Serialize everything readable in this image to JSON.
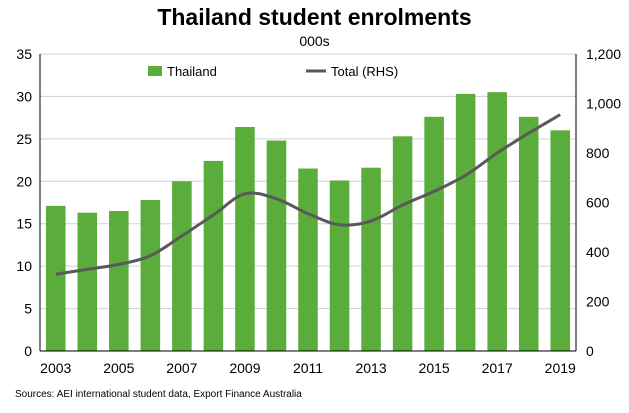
{
  "chart_data": {
    "type": "bar",
    "title": "Thailand student enrolments",
    "subtitle": "000s",
    "source": "Sources: AEI international student data, Export Finance Australia",
    "x": [
      2003,
      2004,
      2005,
      2006,
      2007,
      2008,
      2009,
      2010,
      2011,
      2012,
      2013,
      2014,
      2015,
      2016,
      2017,
      2018,
      2019
    ],
    "x_tick_labels": [
      "2003",
      "2005",
      "2007",
      "2009",
      "2011",
      "2013",
      "2015",
      "2017",
      "2019"
    ],
    "y_left_ticks": [
      "0",
      "5",
      "10",
      "15",
      "20",
      "25",
      "30",
      "35"
    ],
    "y_right_ticks": [
      "0",
      "200",
      "400",
      "600",
      "800",
      "1,000",
      "1,200"
    ],
    "ylim_left": [
      0,
      35
    ],
    "ylim_right": [
      0,
      1200
    ],
    "grid": "horizontal",
    "legend_position": "top",
    "series": [
      {
        "name": "Thailand",
        "type": "bar",
        "axis": "left",
        "color": "#5aad3a",
        "values": [
          17.1,
          16.3,
          16.5,
          17.8,
          20.0,
          22.4,
          26.4,
          24.8,
          21.5,
          20.1,
          21.6,
          25.3,
          27.6,
          30.3,
          30.5,
          27.6,
          26.0
        ]
      },
      {
        "name": "Total (RHS)",
        "type": "line",
        "axis": "right",
        "color": "#595959",
        "values": [
          310,
          330,
          350,
          385,
          465,
          550,
          635,
          615,
          555,
          510,
          525,
          590,
          645,
          710,
          800,
          880,
          955
        ]
      }
    ]
  }
}
